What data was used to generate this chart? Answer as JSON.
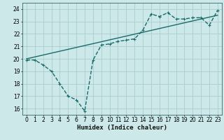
{
  "title": "",
  "xlabel": "Humidex (Indice chaleur)",
  "bg_color": "#cce8e8",
  "grid_color": "#aacccc",
  "line_color": "#1a6b6b",
  "xlim": [
    -0.5,
    23.5
  ],
  "ylim": [
    15.5,
    24.5
  ],
  "yticks": [
    16,
    17,
    18,
    19,
    20,
    21,
    22,
    23,
    24
  ],
  "xticks": [
    0,
    1,
    2,
    3,
    4,
    5,
    6,
    7,
    8,
    9,
    10,
    11,
    12,
    13,
    14,
    15,
    16,
    17,
    18,
    19,
    20,
    21,
    22,
    23
  ],
  "series1_x": [
    0,
    1,
    2,
    3,
    4,
    5,
    6,
    7,
    8,
    9,
    10,
    11,
    12,
    13,
    14,
    15,
    16,
    17,
    18,
    19,
    20,
    21,
    22,
    23
  ],
  "series1_y": [
    19.9,
    19.9,
    19.5,
    19.0,
    18.0,
    17.0,
    16.7,
    15.8,
    19.9,
    21.1,
    21.2,
    21.4,
    21.5,
    21.6,
    22.3,
    23.6,
    23.4,
    23.7,
    23.2,
    23.2,
    23.3,
    23.3,
    22.7,
    23.9
  ],
  "series2_x": [
    0,
    23
  ],
  "series2_y": [
    20.0,
    23.5
  ],
  "marker_size": 3.0,
  "linewidth": 1.0,
  "tick_fontsize": 5.5,
  "xlabel_fontsize": 6.5
}
